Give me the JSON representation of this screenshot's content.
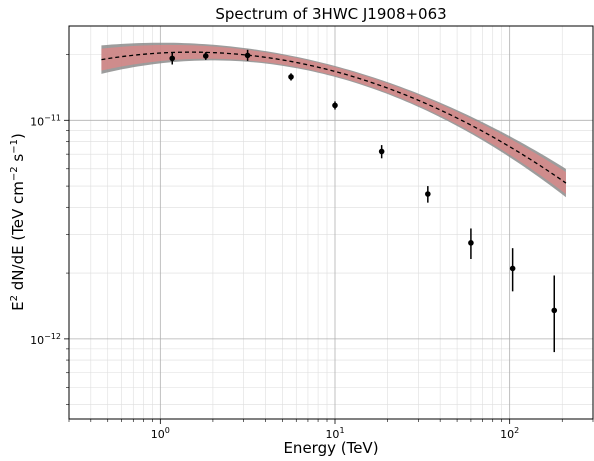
{
  "chart_data": {
    "type": "scatter",
    "title": "Spectrum of 3HWC J1908+063",
    "xlabel": "Energy (TeV)",
    "ylabel_parts": {
      "prefix": "E",
      "sup2": "2",
      "mid": " dN/dE (TeV cm",
      "supm2": "−2",
      "s": " s",
      "supm1": "−1",
      "close": ")"
    },
    "x_scale": "log",
    "y_scale": "log",
    "xlim": [
      0.3,
      300
    ],
    "ylim": [
      4.3e-13,
      2.7e-11
    ],
    "x_ticks": [
      {
        "value": 1,
        "label_base": "10",
        "label_exp": "0"
      },
      {
        "value": 10,
        "label_base": "10",
        "label_exp": "1"
      },
      {
        "value": 100,
        "label_base": "10",
        "label_exp": "2"
      }
    ],
    "y_ticks": [
      {
        "value": 1e-12,
        "label_base": "10",
        "label_exp": "−12"
      },
      {
        "value": 1e-11,
        "label_base": "10",
        "label_exp": "−11"
      }
    ],
    "grid": true,
    "legend": "none",
    "colors": {
      "points": "#000000",
      "model_line": "#000000",
      "band_gray": "#8c8c8c",
      "band_red": "#f08080"
    },
    "model": {
      "type": "log-parabola",
      "E_range": [
        0.46,
        210
      ],
      "reference_E": 1.5,
      "reference_value": 2.05e-11,
      "curvature_beta": 0.13,
      "style": "dashed"
    },
    "bands": [
      {
        "color": "gray",
        "E_range": [
          0.46,
          210
        ],
        "log_halfwidth_at_ends": 0.065,
        "log_halfwidth_at_mid": 0.025
      },
      {
        "color": "red",
        "E_range": [
          0.46,
          210
        ],
        "log_halfwidth_at_ends": 0.05,
        "log_halfwidth_at_mid": 0.02
      }
    ],
    "series": [
      {
        "x": [
          1.17,
          1.82,
          3.16,
          5.6,
          10.0,
          18.5,
          34.0,
          60.0,
          104.0,
          180.0
        ],
        "y": [
          1.92e-11,
          1.97e-11,
          1.98e-11,
          1.58e-11,
          1.17e-11,
          7.2e-12,
          4.6e-12,
          2.75e-12,
          2.1e-12,
          1.35e-12
        ],
        "y_low": [
          1.8e-11,
          1.89e-11,
          1.87e-11,
          1.52e-11,
          1.12e-11,
          6.7e-12,
          4.2e-12,
          2.32e-12,
          1.65e-12,
          8.7e-13
        ],
        "y_high": [
          2.05e-11,
          2.05e-11,
          2.1e-11,
          1.64e-11,
          1.22e-11,
          7.7e-12,
          5e-12,
          3.2e-12,
          2.6e-12,
          1.95e-12
        ]
      }
    ]
  }
}
